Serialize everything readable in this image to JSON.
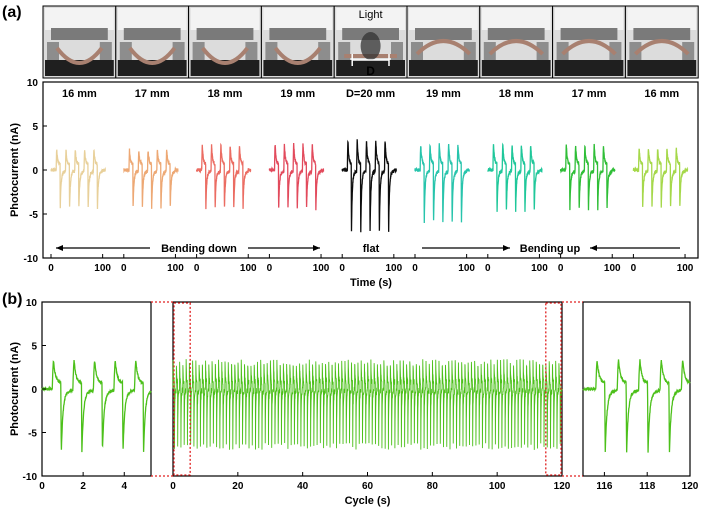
{
  "panel_a": {
    "label": "(a)",
    "photos": [
      {
        "caption": "16 mm",
        "state": "bending-down"
      },
      {
        "caption": "17 mm",
        "state": "bending-down"
      },
      {
        "caption": "18 mm",
        "state": "bending-down"
      },
      {
        "caption": "19 mm",
        "state": "bending-down"
      },
      {
        "caption": "D=20 mm",
        "state": "flat"
      },
      {
        "caption": "19 mm",
        "state": "bending-up"
      },
      {
        "caption": "18 mm",
        "state": "bending-up"
      },
      {
        "caption": "17 mm",
        "state": "bending-up"
      },
      {
        "caption": "16 mm",
        "state": "bending-up"
      }
    ],
    "light_label": "Light",
    "d_label": "D",
    "arrow_labels": {
      "down": "Bending down",
      "flat": "flat",
      "up": "Bending up"
    }
  },
  "panel_b": {
    "label": "(b)"
  },
  "chart_data": [
    {
      "type": "line",
      "id": "panel-a-photocurrent",
      "xlabel": "Time (s)",
      "ylabel": "Photocurrent (nA)",
      "ylim": [
        -10,
        10
      ],
      "yticks": [
        -10,
        -5,
        0,
        5,
        10
      ],
      "subplot_xticks": [
        0,
        100
      ],
      "subplot_xlim": [
        0,
        110
      ],
      "series": [
        {
          "color": "#e8d09a",
          "pulses": 5,
          "peak_nA": 3.8,
          "trough_nA": -5.0
        },
        {
          "color": "#eda874",
          "pulses": 5,
          "peak_nA": 3.8,
          "trough_nA": -5.0
        },
        {
          "color": "#eb6c62",
          "pulses": 5,
          "peak_nA": 4.8,
          "trough_nA": -5.0
        },
        {
          "color": "#e24a5c",
          "pulses": 5,
          "peak_nA": 5.0,
          "trough_nA": -5.2
        },
        {
          "color": "#0d0d0d",
          "pulses": 5,
          "peak_nA": 5.8,
          "trough_nA": -8.6
        },
        {
          "color": "#27c4ac",
          "pulses": 5,
          "peak_nA": 5.0,
          "trough_nA": -7.2
        },
        {
          "color": "#1fc79a",
          "pulses": 5,
          "peak_nA": 5.0,
          "trough_nA": -5.5
        },
        {
          "color": "#2fbe37",
          "pulses": 5,
          "peak_nA": 4.8,
          "trough_nA": -5.2
        },
        {
          "color": "#a5d84a",
          "pulses": 5,
          "peak_nA": 4.2,
          "trough_nA": -5.0
        }
      ]
    },
    {
      "type": "line",
      "id": "panel-b-cycle",
      "xlabel": "Cycle (s)",
      "ylabel": "Photocurrent (nA)",
      "ylim": [
        -10,
        10
      ],
      "yticks": [
        -10,
        -5,
        0,
        5,
        10
      ],
      "color": "#4cc01a",
      "subplots": [
        {
          "name": "zoom-start",
          "xlim": [
            0,
            5.3
          ],
          "xticks": [
            0,
            2,
            4
          ],
          "pulse_times": [
            0.5,
            1.5,
            2.5,
            3.5,
            4.5
          ],
          "peak_nA": 5.6,
          "trough_nA": -8.5
        },
        {
          "name": "full-run",
          "xlim": [
            0,
            120
          ],
          "xticks": [
            0,
            20,
            40,
            60,
            80,
            100,
            120
          ],
          "pulse_period": 1.0,
          "peak_nA": 5.6,
          "trough_nA": -8.8
        },
        {
          "name": "zoom-end",
          "xlim": [
            115,
            120
          ],
          "xticks": [
            116,
            118,
            120
          ],
          "pulse_times": [
            115.6,
            116.6,
            117.6,
            118.6,
            119.6
          ],
          "peak_nA": 5.6,
          "trough_nA": -8.5
        }
      ]
    }
  ]
}
